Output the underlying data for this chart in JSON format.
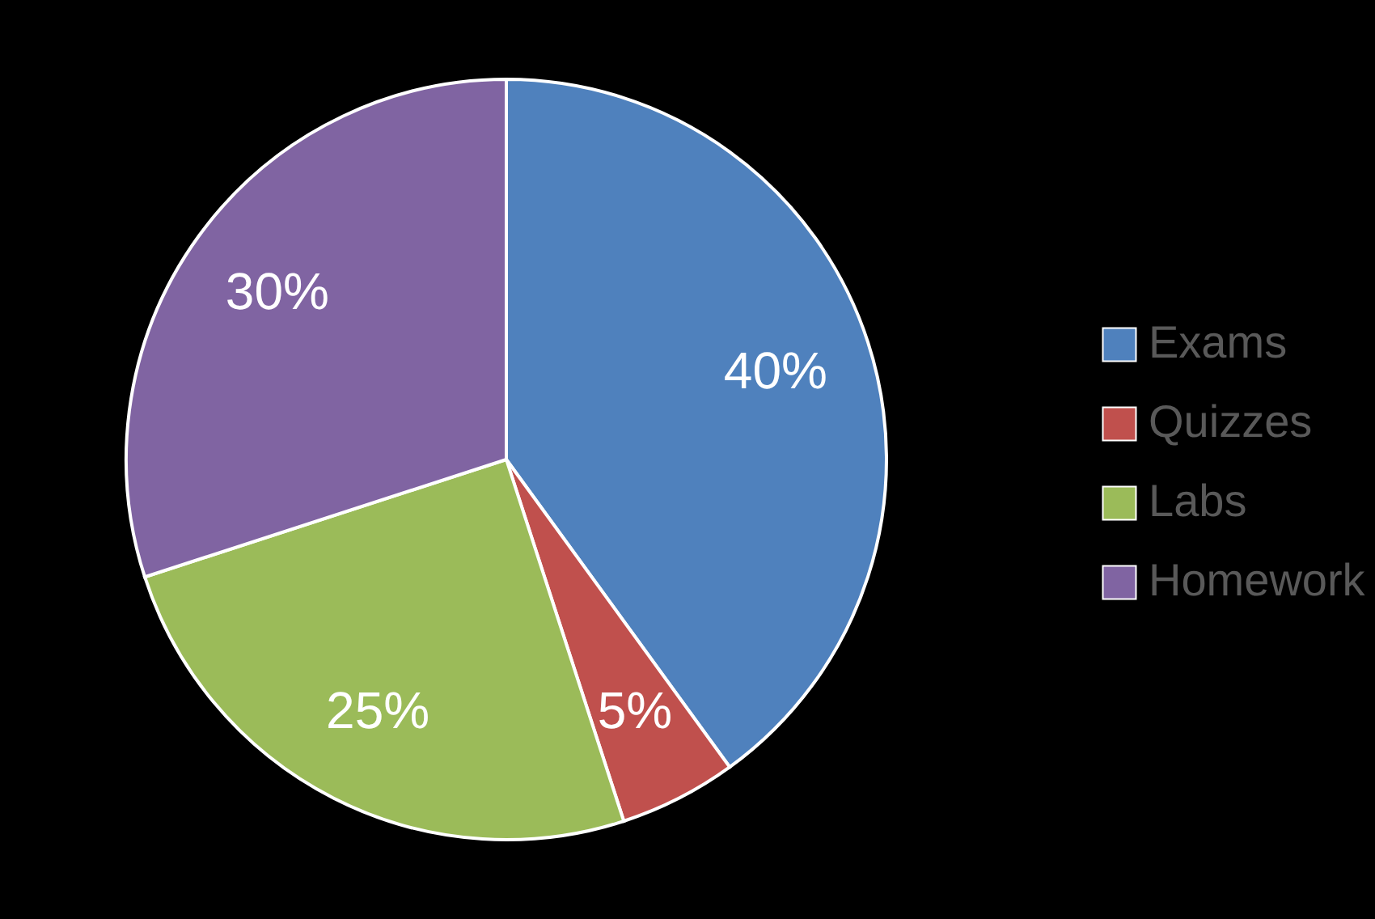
{
  "chart_data": {
    "type": "pie",
    "categories": [
      "Exams",
      "Quizzes",
      "Labs",
      "Homework"
    ],
    "values": [
      40,
      5,
      25,
      30
    ],
    "value_labels": [
      "40%",
      "5%",
      "25%",
      "30%"
    ],
    "colors": [
      "#4f81bd",
      "#c0504d",
      "#9bbb59",
      "#8064a2"
    ],
    "legend": "right"
  }
}
